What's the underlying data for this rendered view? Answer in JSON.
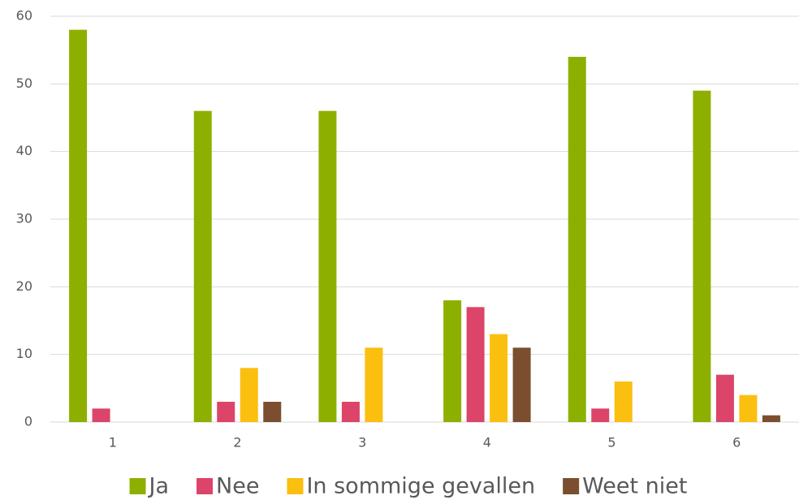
{
  "chart_data": {
    "type": "bar",
    "categories": [
      "1",
      "2",
      "3",
      "4",
      "5",
      "6"
    ],
    "series": [
      {
        "name": "Ja",
        "color": "#8db000",
        "values": [
          58,
          46,
          46,
          18,
          54,
          49
        ]
      },
      {
        "name": "Nee",
        "color": "#dc4469",
        "values": [
          2,
          3,
          3,
          17,
          2,
          7
        ]
      },
      {
        "name": "In sommige gevallen",
        "color": "#fbbf10",
        "values": [
          0,
          8,
          11,
          13,
          6,
          4
        ]
      },
      {
        "name": "Weet niet",
        "color": "#7a4e2e",
        "values": [
          0,
          3,
          0,
          11,
          0,
          1
        ]
      }
    ],
    "ylim": [
      0,
      60
    ],
    "yticks": [
      0,
      10,
      20,
      30,
      40,
      50,
      60
    ],
    "grid": true,
    "legend": "bottom"
  }
}
